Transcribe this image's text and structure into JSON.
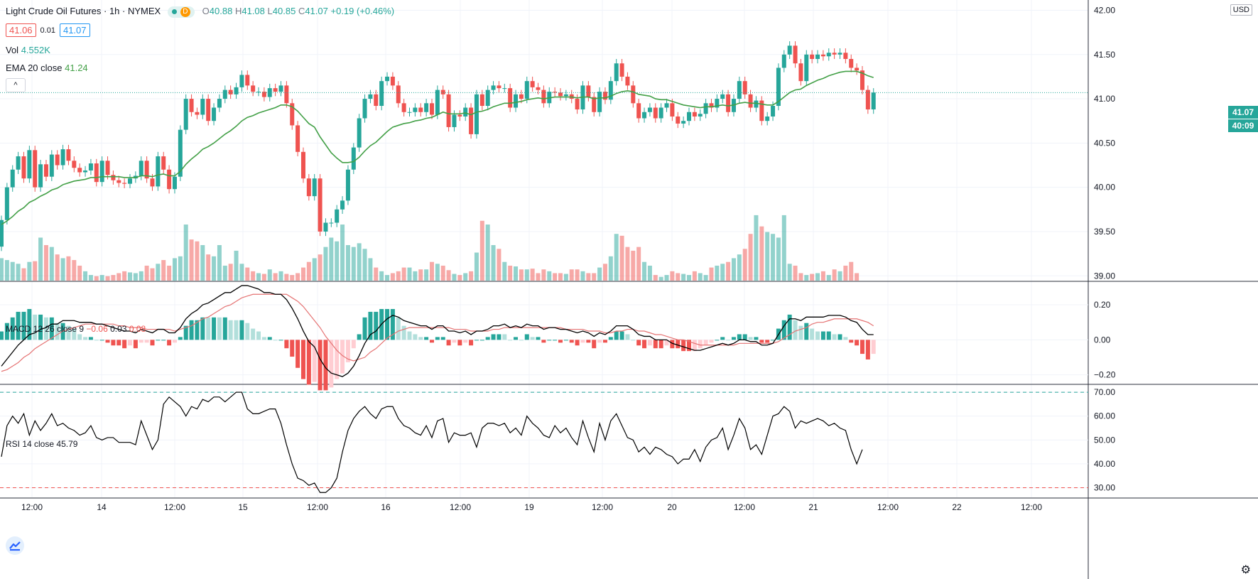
{
  "header": {
    "title": "Light Crude Oil Futures · 1h · NYMEX",
    "status_d": "D",
    "ohlc": {
      "o_label": "O",
      "o": "40.88",
      "h_label": "H",
      "h": "41.08",
      "l_label": "L",
      "l": "40.85",
      "c_label": "C",
      "c": "41.07",
      "chg": "+0.19 (+0.46%)"
    },
    "sell_price": "41.06",
    "spread": "0.01",
    "buy_price": "41.07",
    "vol_label": "Vol",
    "vol_value": "4.552K",
    "ema_label": "EMA 20 close",
    "ema_value": "41.24",
    "collapse_symbol": "^"
  },
  "macd_legend": {
    "label": "MACD 12 26 close 9",
    "v1": "−0.06",
    "v2": "0.03",
    "v3": "0.08"
  },
  "rsi_legend": {
    "label": "RSI 14 close",
    "value": "45.79"
  },
  "axis": {
    "currency": "USD",
    "last_price_tag": "41.07",
    "countdown_tag": "40:09"
  },
  "colors": {
    "up": "#26a69a",
    "down": "#ef5350",
    "ema": "#43a047",
    "macd": "#000000",
    "signal": "#e57373",
    "grid": "#f0f3fa"
  },
  "chart_data": {
    "type": "candlestick",
    "title": "Light Crude Oil Futures · 1h · NYMEX",
    "price_axis": {
      "ticks": [
        39.0,
        39.5,
        40.0,
        40.5,
        41.0,
        41.5,
        42.0
      ],
      "tick_labels": [
        "39.00",
        "39.50",
        "40.00",
        "40.50",
        "41.00",
        "41.50",
        "42.00"
      ],
      "range": [
        38.97,
        42.1
      ]
    },
    "time_axis": {
      "tick_labels": [
        "12:00",
        "14",
        "12:00",
        "15",
        "12:00",
        "16",
        "12:00",
        "19",
        "12:00",
        "20",
        "12:00",
        "21",
        "12:00",
        "22",
        "12:00"
      ]
    },
    "closes": [
      39.63,
      40.0,
      40.2,
      40.35,
      40.1,
      40.42,
      40.0,
      40.26,
      40.12,
      40.37,
      40.25,
      40.43,
      40.3,
      40.22,
      40.17,
      40.19,
      40.27,
      40.06,
      40.3,
      40.14,
      40.08,
      40.05,
      40.04,
      40.1,
      40.13,
      40.3,
      40.1,
      40.01,
      40.35,
      40.2,
      39.98,
      40.12,
      40.65,
      41.0,
      40.85,
      40.82,
      41.0,
      40.75,
      40.9,
      41.0,
      41.1,
      41.05,
      41.13,
      41.27,
      41.15,
      41.08,
      41.08,
      41.02,
      41.12,
      41.08,
      41.15,
      40.95,
      40.7,
      40.4,
      40.1,
      39.9,
      40.1,
      39.5,
      39.6,
      39.6,
      39.75,
      39.85,
      40.2,
      40.45,
      40.78,
      41.0,
      41.05,
      40.92,
      41.2,
      41.25,
      41.15,
      40.95,
      40.85,
      40.85,
      40.9,
      40.85,
      40.95,
      40.82,
      41.1,
      41.05,
      40.68,
      40.82,
      40.8,
      40.9,
      40.6,
      41.05,
      40.92,
      41.1,
      41.15,
      41.12,
      41.12,
      40.9,
      41.05,
      41.0,
      41.2,
      41.13,
      41.1,
      40.95,
      41.08,
      41.07,
      41.03,
      41.05,
      41.0,
      40.88,
      41.15,
      41.02,
      40.85,
      41.08,
      40.99,
      41.2,
      41.4,
      41.25,
      41.15,
      40.95,
      40.78,
      40.85,
      40.9,
      40.78,
      40.9,
      40.95,
      40.8,
      40.72,
      40.75,
      40.85,
      40.8,
      40.83,
      40.95,
      40.9,
      41.0,
      41.05,
      40.85,
      41.0,
      41.2,
      41.05,
      40.9,
      40.98,
      40.75,
      40.8,
      40.92,
      41.35,
      41.5,
      41.6,
      41.4,
      41.2,
      41.5,
      41.45,
      41.5,
      41.48,
      41.52,
      41.5,
      41.52,
      41.45,
      41.35,
      41.32,
      41.1,
      40.88,
      41.07
    ],
    "volumes": [
      600,
      550,
      500,
      450,
      330,
      500,
      520,
      1150,
      950,
      900,
      700,
      600,
      650,
      550,
      400,
      250,
      150,
      120,
      150,
      120,
      150,
      200,
      250,
      220,
      200,
      250,
      400,
      330,
      450,
      550,
      400,
      600,
      650,
      1500,
      1100,
      1050,
      950,
      700,
      650,
      950,
      400,
      450,
      800,
      450,
      350,
      250,
      200,
      180,
      300,
      200,
      250,
      180,
      150,
      200,
      350,
      500,
      600,
      700,
      900,
      1150,
      1050,
      1500,
      950,
      900,
      1000,
      850,
      600,
      350,
      250,
      150,
      200,
      250,
      350,
      350,
      250,
      300,
      300,
      500,
      450,
      400,
      280,
      180,
      150,
      200,
      250,
      750,
      1600,
      1500,
      950,
      850,
      500,
      400,
      380,
      300,
      300,
      320,
      200,
      300,
      250,
      200,
      200,
      180,
      300,
      300,
      250,
      200,
      200,
      350,
      450,
      650,
      1250,
      1200,
      900,
      800,
      900,
      500,
      400,
      150,
      100,
      150,
      250,
      200,
      180,
      150,
      250,
      200,
      150,
      350,
      400,
      450,
      500,
      600,
      700,
      850,
      1250,
      1750,
      1450,
      1300,
      1250,
      1150,
      1750,
      450,
      400,
      200,
      150,
      180,
      200,
      250,
      150,
      300,
      250,
      400,
      500,
      200
    ],
    "ema20": [
      39.58,
      39.62,
      39.67,
      39.73,
      39.77,
      39.83,
      39.86,
      39.9,
      39.93,
      39.97,
      39.99,
      40.03,
      40.05,
      40.07,
      40.08,
      40.09,
      40.11,
      40.11,
      40.12,
      40.12,
      40.12,
      40.12,
      40.11,
      40.11,
      40.11,
      40.13,
      40.13,
      40.12,
      40.14,
      40.15,
      40.13,
      40.13,
      40.18,
      40.26,
      40.32,
      40.37,
      40.43,
      40.46,
      40.5,
      40.55,
      40.6,
      40.64,
      40.69,
      40.75,
      40.79,
      40.81,
      40.84,
      40.86,
      40.88,
      40.9,
      40.93,
      40.93,
      40.91,
      40.86,
      40.79,
      40.72,
      40.68,
      40.57,
      40.48,
      40.39,
      40.33,
      40.28,
      40.28,
      40.29,
      40.34,
      40.41,
      40.47,
      40.51,
      40.57,
      40.63,
      40.68,
      40.7,
      40.72,
      40.73,
      40.75,
      40.76,
      40.78,
      40.79,
      40.82,
      40.85,
      40.83,
      40.83,
      40.83,
      40.84,
      40.82,
      40.85,
      40.86,
      40.88,
      40.91,
      40.93,
      40.95,
      40.95,
      40.96,
      40.97,
      40.99,
      41.0,
      41.01,
      41.0,
      41.01,
      41.02,
      41.02,
      41.02,
      41.02,
      41.01,
      41.02,
      41.02,
      41.0,
      41.01,
      41.01,
      41.03,
      41.06,
      41.08,
      41.09,
      41.08,
      41.05,
      41.04,
      41.03,
      41.0,
      40.99,
      40.99,
      40.97,
      40.95,
      40.93,
      40.92,
      40.91,
      40.9,
      40.91,
      40.91,
      40.92,
      40.93,
      40.92,
      40.93,
      40.95,
      40.96,
      40.95,
      40.95,
      40.94,
      40.93,
      40.93,
      40.97,
      41.02,
      41.07,
      41.1,
      41.11,
      41.15,
      41.18,
      41.21,
      41.23,
      41.26,
      41.28,
      41.3,
      41.31,
      41.31,
      41.31,
      41.29,
      41.26,
      41.24
    ],
    "macd": [
      -0.15,
      -0.11,
      -0.07,
      -0.03,
      0.0,
      0.03,
      0.04,
      0.06,
      0.07,
      0.09,
      0.09,
      0.11,
      0.11,
      0.11,
      0.1,
      0.1,
      0.1,
      0.09,
      0.09,
      0.08,
      0.07,
      0.06,
      0.05,
      0.05,
      0.04,
      0.06,
      0.05,
      0.04,
      0.06,
      0.06,
      0.04,
      0.04,
      0.07,
      0.12,
      0.15,
      0.17,
      0.2,
      0.21,
      0.23,
      0.25,
      0.27,
      0.27,
      0.29,
      0.31,
      0.31,
      0.3,
      0.29,
      0.27,
      0.27,
      0.26,
      0.26,
      0.23,
      0.18,
      0.12,
      0.05,
      -0.01,
      -0.04,
      -0.11,
      -0.16,
      -0.19,
      -0.2,
      -0.21,
      -0.19,
      -0.15,
      -0.09,
      -0.02,
      0.03,
      0.05,
      0.09,
      0.12,
      0.14,
      0.13,
      0.11,
      0.1,
      0.09,
      0.08,
      0.08,
      0.06,
      0.08,
      0.08,
      0.05,
      0.05,
      0.04,
      0.05,
      0.03,
      0.05,
      0.05,
      0.06,
      0.08,
      0.08,
      0.09,
      0.07,
      0.08,
      0.07,
      0.09,
      0.08,
      0.08,
      0.06,
      0.07,
      0.07,
      0.06,
      0.06,
      0.05,
      0.04,
      0.05,
      0.04,
      0.02,
      0.04,
      0.03,
      0.05,
      0.08,
      0.08,
      0.08,
      0.06,
      0.03,
      0.02,
      0.02,
      0.0,
      0.0,
      0.0,
      -0.02,
      -0.03,
      -0.04,
      -0.05,
      -0.06,
      -0.06,
      -0.05,
      -0.04,
      -0.03,
      -0.02,
      -0.03,
      -0.02,
      0.0,
      0.0,
      -0.01,
      -0.01,
      -0.03,
      -0.03,
      -0.02,
      0.03,
      0.08,
      0.12,
      0.12,
      0.11,
      0.13,
      0.13,
      0.13,
      0.13,
      0.14,
      0.14,
      0.14,
      0.13,
      0.11,
      0.1,
      0.06,
      0.03,
      0.03
    ],
    "signal": [
      -0.18,
      -0.17,
      -0.15,
      -0.13,
      -0.1,
      -0.08,
      -0.05,
      -0.03,
      -0.01,
      0.01,
      0.03,
      0.05,
      0.06,
      0.07,
      0.08,
      0.09,
      0.09,
      0.09,
      0.09,
      0.09,
      0.09,
      0.08,
      0.08,
      0.07,
      0.07,
      0.07,
      0.06,
      0.06,
      0.06,
      0.06,
      0.06,
      0.05,
      0.06,
      0.07,
      0.08,
      0.1,
      0.12,
      0.13,
      0.15,
      0.17,
      0.19,
      0.2,
      0.22,
      0.24,
      0.25,
      0.26,
      0.26,
      0.26,
      0.26,
      0.26,
      0.26,
      0.26,
      0.24,
      0.22,
      0.19,
      0.15,
      0.11,
      0.07,
      0.02,
      -0.02,
      -0.06,
      -0.09,
      -0.11,
      -0.12,
      -0.11,
      -0.1,
      -0.07,
      -0.05,
      -0.02,
      0.01,
      0.03,
      0.05,
      0.06,
      0.07,
      0.07,
      0.07,
      0.07,
      0.07,
      0.07,
      0.07,
      0.07,
      0.06,
      0.06,
      0.06,
      0.05,
      0.05,
      0.05,
      0.05,
      0.06,
      0.06,
      0.07,
      0.07,
      0.07,
      0.07,
      0.07,
      0.07,
      0.07,
      0.07,
      0.07,
      0.07,
      0.07,
      0.06,
      0.06,
      0.06,
      0.06,
      0.05,
      0.05,
      0.05,
      0.04,
      0.04,
      0.05,
      0.05,
      0.06,
      0.06,
      0.05,
      0.05,
      0.04,
      0.03,
      0.03,
      0.02,
      0.01,
      0.0,
      0.0,
      -0.01,
      -0.02,
      -0.03,
      -0.03,
      -0.03,
      -0.03,
      -0.03,
      -0.03,
      -0.03,
      -0.02,
      -0.02,
      -0.02,
      -0.02,
      -0.02,
      -0.02,
      -0.02,
      -0.01,
      0.01,
      0.03,
      0.05,
      0.06,
      0.07,
      0.09,
      0.1,
      0.1,
      0.11,
      0.12,
      0.12,
      0.12,
      0.12,
      0.12,
      0.11,
      0.1,
      0.08
    ],
    "macd_axis": {
      "ticks": [
        0.2,
        0.0,
        -0.2
      ],
      "tick_labels": [
        "0.20",
        "0.00",
        "−0.20"
      ],
      "range": [
        -0.25,
        0.33
      ]
    },
    "rsi": [
      43,
      56,
      60,
      57,
      61,
      52,
      58,
      54,
      57,
      61,
      56,
      57,
      55,
      54,
      52,
      53,
      56,
      51,
      50,
      51,
      51,
      49,
      49,
      49,
      48,
      58,
      52,
      46,
      50,
      65,
      68,
      66,
      64,
      60,
      64,
      63,
      67,
      66,
      68,
      68,
      66,
      68,
      70,
      70,
      63,
      61,
      61,
      62,
      63,
      63,
      57,
      48,
      40,
      34,
      33,
      31,
      32,
      28,
      28,
      30,
      34,
      45,
      54,
      59,
      62,
      64,
      61,
      59,
      63,
      64,
      64,
      59,
      56,
      55,
      53,
      52,
      56,
      51,
      58,
      59,
      49,
      53,
      52,
      52,
      53,
      47,
      55,
      57,
      57,
      56,
      57,
      53,
      55,
      52,
      60,
      57,
      55,
      52,
      51,
      56,
      53,
      55,
      51,
      48,
      58,
      51,
      45,
      57,
      50,
      58,
      61,
      56,
      51,
      50,
      45,
      47,
      44,
      47,
      46,
      44,
      43,
      40,
      42,
      42,
      46,
      41,
      47,
      50,
      51,
      55,
      46,
      52,
      59,
      55,
      46,
      48,
      44,
      52,
      60,
      61,
      64,
      62,
      55,
      58,
      57,
      58,
      59,
      58,
      56,
      57,
      55,
      54,
      46,
      40,
      46
    ],
    "rsi_axis": {
      "ticks": [
        70,
        60,
        50,
        40,
        30
      ],
      "tick_labels": [
        "70.00",
        "60.00",
        "50.00",
        "40.00",
        "30.00"
      ],
      "range": [
        26,
        73
      ],
      "overbought": 70,
      "oversold": 30
    }
  }
}
